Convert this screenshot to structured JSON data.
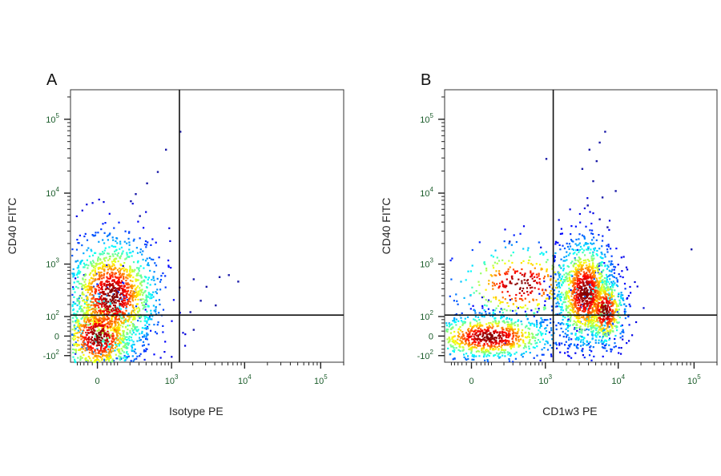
{
  "chart_data": [
    {
      "type": "scatter",
      "panel_label": "A",
      "xlabel": "Isotype PE",
      "ylabel": "CD40 FITC",
      "x_scale": "biexponential",
      "y_scale": "biexponential",
      "xlim": [
        -150,
        200000
      ],
      "ylim": [
        -150,
        250000
      ],
      "x_ticks": [
        {
          "value": 0,
          "label": "0"
        },
        {
          "value": 1000,
          "base": "10",
          "exp": "3"
        },
        {
          "value": 10000,
          "base": "10",
          "exp": "4"
        },
        {
          "value": 100000,
          "base": "10",
          "exp": "5"
        }
      ],
      "y_ticks": [
        {
          "value": -100,
          "base": "-10",
          "exp": "2"
        },
        {
          "value": 0,
          "label": "0"
        },
        {
          "value": 100,
          "base": "10",
          "exp": "2"
        },
        {
          "value": 1000,
          "base": "10",
          "exp": "3"
        },
        {
          "value": 10000,
          "base": "10",
          "exp": "4"
        },
        {
          "value": 100000,
          "base": "10",
          "exp": "5"
        }
      ],
      "quadrant_gate": {
        "x": 1300,
        "y": 110
      },
      "populations": [
        {
          "x_center": 60,
          "y_center": 300,
          "x_spread": 0.32,
          "y_spread": 0.42,
          "count": 1500
        },
        {
          "x_center": 0,
          "y_center": 2,
          "x_spread": 0.28,
          "y_spread": 0.3,
          "count": 900
        }
      ],
      "outliers": [
        {
          "x": 1300,
          "y": 70000
        },
        {
          "x": 800,
          "y": 40000
        },
        {
          "x": 600,
          "y": 20000
        },
        {
          "x": 400,
          "y": 14000
        },
        {
          "x": 250,
          "y": 10000
        },
        {
          "x": 200,
          "y": 8000
        },
        {
          "x": 300,
          "y": 5000
        },
        {
          "x": 2000,
          "y": 600
        },
        {
          "x": 3000,
          "y": 450
        },
        {
          "x": 4500,
          "y": 650
        },
        {
          "x": 6000,
          "y": 700
        },
        {
          "x": 8000,
          "y": 550
        },
        {
          "x": 2500,
          "y": 250
        },
        {
          "x": 4000,
          "y": 200
        },
        {
          "x": 2000,
          "y": 30
        },
        {
          "x": 1800,
          "y": 140
        }
      ]
    },
    {
      "type": "scatter",
      "panel_label": "B",
      "xlabel": "CD1w3 PE",
      "ylabel": "CD40 FITC",
      "x_scale": "biexponential",
      "y_scale": "biexponential",
      "xlim": [
        -150,
        200000
      ],
      "ylim": [
        -150,
        250000
      ],
      "x_ticks": [
        {
          "value": 0,
          "label": "0"
        },
        {
          "value": 1000,
          "base": "10",
          "exp": "3"
        },
        {
          "value": 10000,
          "base": "10",
          "exp": "4"
        },
        {
          "value": 100000,
          "base": "10",
          "exp": "5"
        }
      ],
      "y_ticks": [
        {
          "value": -100,
          "base": "-10",
          "exp": "2"
        },
        {
          "value": 0,
          "label": "0"
        },
        {
          "value": 100,
          "base": "10",
          "exp": "2"
        },
        {
          "value": 1000,
          "base": "10",
          "exp": "3"
        },
        {
          "value": 10000,
          "base": "10",
          "exp": "4"
        },
        {
          "value": 100000,
          "base": "10",
          "exp": "5"
        }
      ],
      "quadrant_gate": {
        "x": 1300,
        "y": 110
      },
      "populations": [
        {
          "x_center": 80,
          "y_center": 0,
          "x_spread": 0.45,
          "y_spread": 0.16,
          "count": 900
        },
        {
          "x_center": 3500,
          "y_center": 350,
          "x_spread": 0.2,
          "y_spread": 0.38,
          "count": 1200
        },
        {
          "x_center": 6500,
          "y_center": 150,
          "x_spread": 0.14,
          "y_spread": 0.25,
          "count": 500
        },
        {
          "x_center": 400,
          "y_center": 500,
          "x_spread": 0.45,
          "y_spread": 0.28,
          "count": 350
        }
      ],
      "outliers": [
        {
          "x": 6500,
          "y": 70000
        },
        {
          "x": 5500,
          "y": 50000
        },
        {
          "x": 4000,
          "y": 40000
        },
        {
          "x": 5000,
          "y": 28000
        },
        {
          "x": 3200,
          "y": 22000
        },
        {
          "x": 4500,
          "y": 15000
        },
        {
          "x": 9000,
          "y": 11000
        },
        {
          "x": 6000,
          "y": 9000
        },
        {
          "x": 3800,
          "y": 7000
        },
        {
          "x": 5500,
          "y": 4500
        },
        {
          "x": 7000,
          "y": 3500
        },
        {
          "x": 1000,
          "y": 30000
        },
        {
          "x": 90000,
          "y": 1700
        },
        {
          "x": 250,
          "y": 2200
        }
      ]
    }
  ]
}
